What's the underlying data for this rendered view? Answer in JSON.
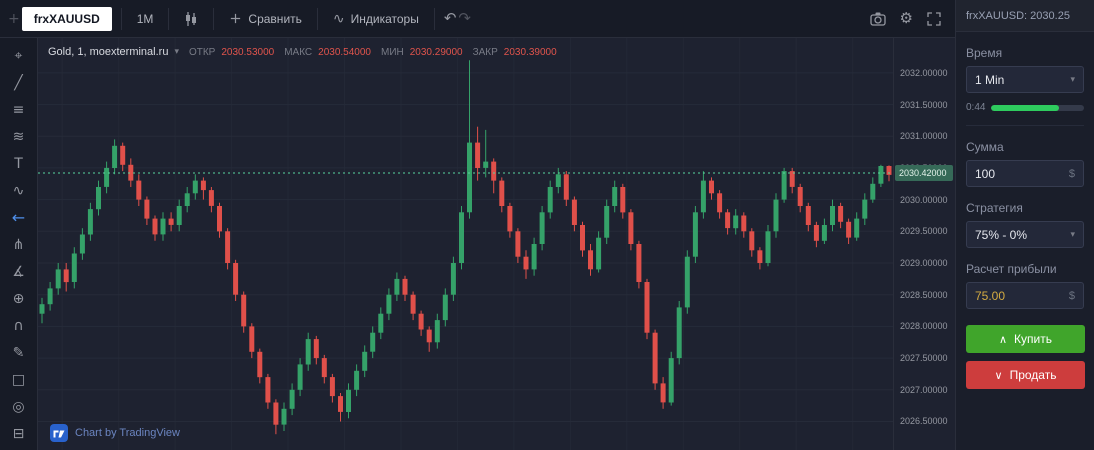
{
  "icons": {
    "plus": "+",
    "chevron_down": "▾",
    "undo": "↶",
    "redo": "↷",
    "gear": "⚙",
    "indicators": "∿",
    "buy_arrow": "∧",
    "sell_arrow": "∨"
  },
  "top_toolbar": {
    "symbol": "frxXAUUSD",
    "interval": "1M",
    "compare_label": "Сравнить",
    "indicators_label": "Индикаторы"
  },
  "left_toolbar": {
    "items": [
      {
        "name": "crosshair-icon",
        "glyph": "⌖"
      },
      {
        "name": "trend-line-icon",
        "glyph": "╱"
      },
      {
        "name": "fib-retracement-icon",
        "glyph": "≡"
      },
      {
        "name": "brush-icon",
        "glyph": "≋"
      },
      {
        "name": "text-icon",
        "glyph": "T"
      },
      {
        "name": "pattern-icon",
        "glyph": "∿"
      },
      {
        "name": "arrow-left-icon",
        "glyph": "←",
        "accent": true
      },
      {
        "name": "pitchfork-icon",
        "glyph": "⋔"
      },
      {
        "name": "measure-icon",
        "glyph": "∡"
      },
      {
        "name": "zoom-in-icon",
        "glyph": "⊕"
      },
      {
        "name": "magnet-icon",
        "glyph": "∩"
      },
      {
        "name": "pencil-icon",
        "glyph": "✎"
      },
      {
        "name": "lock-icon",
        "glyph": "□"
      },
      {
        "name": "eye-icon",
        "glyph": "◎"
      },
      {
        "name": "trash-icon",
        "glyph": "⊟"
      }
    ]
  },
  "legend": {
    "title": "Gold, 1, moexterminal.ru",
    "open_label": "ОТКР",
    "open_value": "2030.53000",
    "high_label": "МАКС",
    "high_value": "2030.54000",
    "low_label": "МИН",
    "low_value": "2030.29000",
    "close_label": "ЗАКР",
    "close_value": "2030.39000"
  },
  "price_axis": {
    "current": "2030.42000"
  },
  "attribution": {
    "text": "Chart by TradingView"
  },
  "trade_panel": {
    "header": "frxXAUUSD: 2030.25",
    "time_label": "Время",
    "time_value": "1 Min",
    "timer_value": "0:44",
    "timer_progress": 0.73,
    "amount_label": "Сумма",
    "amount_value": "100",
    "currency": "$",
    "strategy_label": "Стратегия",
    "strategy_value": "75% - 0%",
    "profit_label": "Расчет прибыли",
    "profit_value": "75.00",
    "buy_label": "Купить",
    "sell_label": "Продать"
  },
  "chart_data": {
    "type": "candlestick",
    "title": "Gold, 1, moexterminal.ru",
    "interval": "1 minute",
    "price_range": [
      2026.05,
      2032.55
    ],
    "gridlines": [
      2032.0,
      2031.5,
      2031.0,
      2030.5,
      2030.0,
      2029.5,
      2029.0,
      2028.5,
      2028.0,
      2027.5,
      2027.0,
      2026.5
    ],
    "current_price": 2030.42,
    "up_color": "#35a269",
    "down_color": "#e0504a",
    "grid_color": "#262b39",
    "vgrid_color": "#232836",
    "candles": [
      [
        2028.2,
        2028.45,
        2028.05,
        2028.35
      ],
      [
        2028.35,
        2028.7,
        2028.25,
        2028.6
      ],
      [
        2028.6,
        2029.0,
        2028.5,
        2028.9
      ],
      [
        2028.9,
        2029.0,
        2028.55,
        2028.7
      ],
      [
        2028.7,
        2029.25,
        2028.6,
        2029.15
      ],
      [
        2029.15,
        2029.55,
        2029.05,
        2029.45
      ],
      [
        2029.45,
        2029.95,
        2029.35,
        2029.85
      ],
      [
        2029.85,
        2030.3,
        2029.75,
        2030.2
      ],
      [
        2030.2,
        2030.6,
        2030.1,
        2030.5
      ],
      [
        2030.5,
        2030.95,
        2030.4,
        2030.85
      ],
      [
        2030.85,
        2030.9,
        2030.45,
        2030.55
      ],
      [
        2030.55,
        2030.65,
        2030.2,
        2030.3
      ],
      [
        2030.3,
        2030.4,
        2029.9,
        2030.0
      ],
      [
        2030.0,
        2030.05,
        2029.6,
        2029.7
      ],
      [
        2029.7,
        2029.75,
        2029.35,
        2029.45
      ],
      [
        2029.45,
        2029.8,
        2029.35,
        2029.7
      ],
      [
        2029.7,
        2029.8,
        2029.5,
        2029.6
      ],
      [
        2029.6,
        2030.0,
        2029.5,
        2029.9
      ],
      [
        2029.9,
        2030.2,
        2029.8,
        2030.1
      ],
      [
        2030.1,
        2030.4,
        2030.0,
        2030.3
      ],
      [
        2030.3,
        2030.35,
        2030.0,
        2030.15
      ],
      [
        2030.15,
        2030.2,
        2029.8,
        2029.9
      ],
      [
        2029.9,
        2029.95,
        2029.4,
        2029.5
      ],
      [
        2029.5,
        2029.55,
        2028.9,
        2029.0
      ],
      [
        2029.0,
        2029.05,
        2028.4,
        2028.5
      ],
      [
        2028.5,
        2028.55,
        2027.9,
        2028.0
      ],
      [
        2028.0,
        2028.05,
        2027.5,
        2027.6
      ],
      [
        2027.6,
        2027.65,
        2027.1,
        2027.2
      ],
      [
        2027.2,
        2027.25,
        2026.7,
        2026.8
      ],
      [
        2026.8,
        2026.85,
        2026.3,
        2026.45
      ],
      [
        2026.45,
        2026.8,
        2026.35,
        2026.7
      ],
      [
        2026.7,
        2027.1,
        2026.6,
        2027.0
      ],
      [
        2027.0,
        2027.5,
        2026.9,
        2027.4
      ],
      [
        2027.4,
        2027.9,
        2027.3,
        2027.8
      ],
      [
        2027.8,
        2027.85,
        2027.4,
        2027.5
      ],
      [
        2027.5,
        2027.55,
        2027.1,
        2027.2
      ],
      [
        2027.2,
        2027.25,
        2026.8,
        2026.9
      ],
      [
        2026.9,
        2026.95,
        2026.5,
        2026.65
      ],
      [
        2026.65,
        2027.1,
        2026.55,
        2027.0
      ],
      [
        2027.0,
        2027.4,
        2026.9,
        2027.3
      ],
      [
        2027.3,
        2027.7,
        2027.2,
        2027.6
      ],
      [
        2027.6,
        2028.0,
        2027.5,
        2027.9
      ],
      [
        2027.9,
        2028.3,
        2027.8,
        2028.2
      ],
      [
        2028.2,
        2028.6,
        2028.1,
        2028.5
      ],
      [
        2028.5,
        2028.85,
        2028.4,
        2028.75
      ],
      [
        2028.75,
        2028.8,
        2028.4,
        2028.5
      ],
      [
        2028.5,
        2028.55,
        2028.1,
        2028.2
      ],
      [
        2028.2,
        2028.25,
        2027.85,
        2027.95
      ],
      [
        2027.95,
        2028.0,
        2027.6,
        2027.75
      ],
      [
        2027.75,
        2028.2,
        2027.65,
        2028.1
      ],
      [
        2028.1,
        2028.6,
        2028.0,
        2028.5
      ],
      [
        2028.5,
        2029.1,
        2028.4,
        2029.0
      ],
      [
        2029.0,
        2029.9,
        2028.9,
        2029.8
      ],
      [
        2029.8,
        2032.2,
        2029.7,
        2030.9
      ],
      [
        2030.9,
        2031.15,
        2030.3,
        2030.5
      ],
      [
        2030.5,
        2031.1,
        2030.35,
        2030.6
      ],
      [
        2030.6,
        2030.65,
        2030.1,
        2030.3
      ],
      [
        2030.3,
        2030.35,
        2029.8,
        2029.9
      ],
      [
        2029.9,
        2029.95,
        2029.4,
        2029.5
      ],
      [
        2029.5,
        2029.55,
        2029.0,
        2029.1
      ],
      [
        2029.1,
        2029.2,
        2028.75,
        2028.9
      ],
      [
        2028.9,
        2029.4,
        2028.8,
        2029.3
      ],
      [
        2029.3,
        2029.9,
        2029.2,
        2029.8
      ],
      [
        2029.8,
        2030.3,
        2029.7,
        2030.2
      ],
      [
        2030.2,
        2030.5,
        2030.1,
        2030.4
      ],
      [
        2030.4,
        2030.45,
        2029.9,
        2030.0
      ],
      [
        2030.0,
        2030.05,
        2029.5,
        2029.6
      ],
      [
        2029.6,
        2029.65,
        2029.1,
        2029.2
      ],
      [
        2029.2,
        2029.3,
        2028.8,
        2028.9
      ],
      [
        2028.9,
        2029.5,
        2028.85,
        2029.4
      ],
      [
        2029.4,
        2030.0,
        2029.3,
        2029.9
      ],
      [
        2029.9,
        2030.3,
        2029.8,
        2030.2
      ],
      [
        2030.2,
        2030.25,
        2029.7,
        2029.8
      ],
      [
        2029.8,
        2029.85,
        2029.2,
        2029.3
      ],
      [
        2029.3,
        2029.35,
        2028.6,
        2028.7
      ],
      [
        2028.7,
        2028.75,
        2027.8,
        2027.9
      ],
      [
        2027.9,
        2027.95,
        2027.0,
        2027.1
      ],
      [
        2027.1,
        2027.2,
        2026.7,
        2026.8
      ],
      [
        2026.8,
        2027.6,
        2026.75,
        2027.5
      ],
      [
        2027.5,
        2028.4,
        2027.4,
        2028.3
      ],
      [
        2028.3,
        2029.2,
        2028.2,
        2029.1
      ],
      [
        2029.1,
        2029.9,
        2029.0,
        2029.8
      ],
      [
        2029.8,
        2030.45,
        2029.7,
        2030.3
      ],
      [
        2030.3,
        2030.35,
        2030.0,
        2030.1
      ],
      [
        2030.1,
        2030.15,
        2029.7,
        2029.8
      ],
      [
        2029.8,
        2029.85,
        2029.45,
        2029.55
      ],
      [
        2029.55,
        2029.85,
        2029.45,
        2029.75
      ],
      [
        2029.75,
        2029.8,
        2029.4,
        2029.5
      ],
      [
        2029.5,
        2029.55,
        2029.1,
        2029.2
      ],
      [
        2029.2,
        2029.25,
        2028.9,
        2029.0
      ],
      [
        2029.0,
        2029.6,
        2028.95,
        2029.5
      ],
      [
        2029.5,
        2030.1,
        2029.4,
        2030.0
      ],
      [
        2030.0,
        2030.5,
        2029.95,
        2030.45
      ],
      [
        2030.45,
        2030.5,
        2030.1,
        2030.2
      ],
      [
        2030.2,
        2030.25,
        2029.8,
        2029.9
      ],
      [
        2029.9,
        2029.95,
        2029.5,
        2029.6
      ],
      [
        2029.6,
        2029.65,
        2029.25,
        2029.35
      ],
      [
        2029.35,
        2029.7,
        2029.3,
        2029.6
      ],
      [
        2029.6,
        2030.0,
        2029.5,
        2029.9
      ],
      [
        2029.9,
        2029.95,
        2029.55,
        2029.65
      ],
      [
        2029.65,
        2029.7,
        2029.3,
        2029.4
      ],
      [
        2029.4,
        2029.8,
        2029.35,
        2029.7
      ],
      [
        2029.7,
        2030.1,
        2029.6,
        2030.0
      ],
      [
        2030.0,
        2030.35,
        2029.95,
        2030.25
      ],
      [
        2030.25,
        2030.55,
        2030.2,
        2030.53
      ],
      [
        2030.53,
        2030.54,
        2030.29,
        2030.39
      ]
    ]
  }
}
